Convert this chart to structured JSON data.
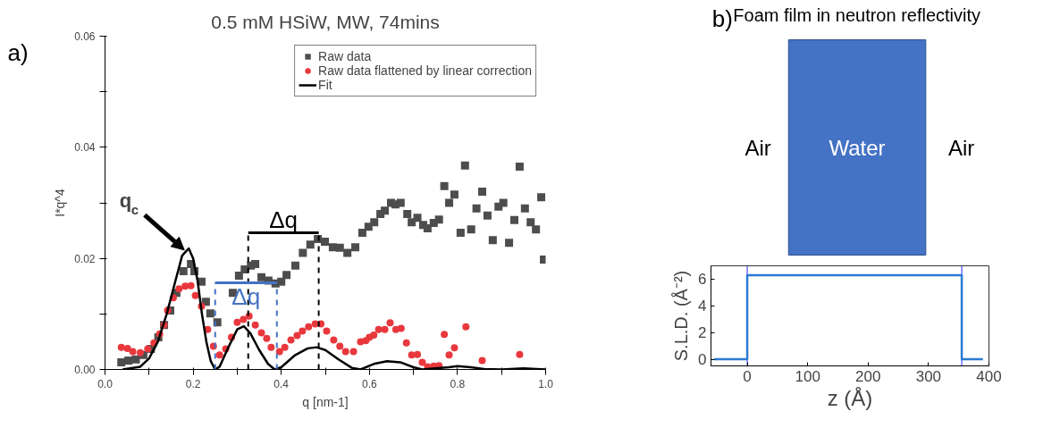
{
  "chart_data": [
    {
      "type": "scatter",
      "title": "0.5 mM HSiW, MW, 74mins",
      "xlabel": "q [nm-1]",
      "ylabel": "I*q^4",
      "xlim": [
        0,
        1
      ],
      "ylim": [
        0,
        0.06
      ],
      "xticks": [
        "0.0",
        {
          "value": 0.1,
          "label": null
        },
        {
          "value": 0.2,
          "label": "0.2"
        },
        {
          "value": 0.3,
          "label": null
        },
        {
          "value": 0.4,
          "label": "0.4"
        },
        {
          "value": 0.5,
          "label": null
        },
        {
          "value": 0.6,
          "label": "0.6"
        },
        {
          "value": 0.7,
          "label": null
        },
        {
          "value": 0.8,
          "label": "0.8"
        },
        {
          "value": 0.9,
          "label": null
        },
        {
          "value": 1.0,
          "label": "1.0"
        }
      ],
      "yticks": [
        {
          "value": 0,
          "label": "0.00"
        },
        {
          "value": 0.01,
          "label": null
        },
        {
          "value": 0.02,
          "label": "0.02"
        },
        {
          "value": 0.03,
          "label": null
        },
        {
          "value": 0.04,
          "label": "0.04"
        },
        {
          "value": 0.05,
          "label": null
        },
        {
          "value": 0.06,
          "label": "0.06"
        }
      ],
      "grid": false,
      "legend": "top right",
      "series": [
        {
          "name": "Raw data",
          "type": "scatter",
          "marker": "square",
          "color": "#4d4d4d",
          "x": [
            0.037,
            0.053,
            0.07,
            0.087,
            0.104,
            0.121,
            0.134,
            0.148,
            0.162,
            0.178,
            0.195,
            0.203,
            0.219,
            0.229,
            0.239,
            0.255,
            0.29,
            0.304,
            0.317,
            0.331,
            0.341,
            0.355,
            0.371,
            0.387,
            0.4,
            0.412,
            0.432,
            0.449,
            0.466,
            0.483,
            0.499,
            0.517,
            0.533,
            0.55,
            0.568,
            0.584,
            0.598,
            0.611,
            0.625,
            0.635,
            0.649,
            0.659,
            0.671,
            0.686,
            0.696,
            0.709,
            0.722,
            0.732,
            0.746,
            0.758,
            0.77,
            0.781,
            0.793,
            0.807,
            0.817,
            0.831,
            0.843,
            0.856,
            0.868,
            0.88,
            0.893,
            0.904,
            0.917,
            0.929,
            0.941,
            0.953,
            0.966,
            0.978,
            0.99,
            0.996
          ],
          "values": [
            0.0013,
            0.0016,
            0.0018,
            0.0026,
            0.0037,
            0.0058,
            0.008,
            0.0106,
            0.0138,
            0.0177,
            0.019,
            0.0177,
            0.0158,
            0.0122,
            0.0101,
            0.0085,
            0.0138,
            0.0169,
            0.018,
            0.0187,
            0.019,
            0.0166,
            0.016,
            0.0155,
            0.0158,
            0.017,
            0.0187,
            0.021,
            0.0225,
            0.0235,
            0.023,
            0.022,
            0.0219,
            0.021,
            0.022,
            0.0246,
            0.0257,
            0.0265,
            0.028,
            0.0286,
            0.03,
            0.0297,
            0.03,
            0.028,
            0.0265,
            0.0273,
            0.026,
            0.0254,
            0.0264,
            0.027,
            0.033,
            0.03,
            0.0315,
            0.0246,
            0.0367,
            0.0252,
            0.029,
            0.032,
            0.0277,
            0.0233,
            0.0293,
            0.03,
            0.0228,
            0.0269,
            0.0365,
            0.029,
            0.0265,
            0.0252,
            0.031,
            0.0198
          ]
        },
        {
          "name": "Raw data flattened by linear correction",
          "type": "scatter",
          "marker": "circle",
          "color": "#e8383d",
          "x": [
            0.037,
            0.051,
            0.063,
            0.08,
            0.097,
            0.111,
            0.124,
            0.134,
            0.142,
            0.155,
            0.168,
            0.182,
            0.195,
            0.205,
            0.219,
            0.233,
            0.246,
            0.26,
            0.274,
            0.287,
            0.3,
            0.314,
            0.327,
            0.341,
            0.355,
            0.367,
            0.377,
            0.396,
            0.408,
            0.422,
            0.436,
            0.448,
            0.462,
            0.477,
            0.49,
            0.503,
            0.519,
            0.533,
            0.546,
            0.564,
            0.58,
            0.592,
            0.6,
            0.61,
            0.621,
            0.635,
            0.647,
            0.66,
            0.672,
            0.684,
            0.696,
            0.709,
            0.72,
            0.732,
            0.746,
            0.758,
            0.77,
            0.781,
            0.793,
            0.819,
            0.856,
            0.941
          ],
          "values": [
            0.004,
            0.0038,
            0.0032,
            0.003,
            0.0037,
            0.0048,
            0.0064,
            0.008,
            0.0106,
            0.0129,
            0.0145,
            0.015,
            0.0151,
            0.0133,
            0.0114,
            0.0072,
            0.0042,
            0.0026,
            0.0037,
            0.0058,
            0.0085,
            0.009,
            0.0096,
            0.008,
            0.0066,
            0.0056,
            0.004,
            0.0032,
            0.004,
            0.0053,
            0.0061,
            0.0069,
            0.0077,
            0.0082,
            0.0082,
            0.0069,
            0.0053,
            0.0042,
            0.0032,
            0.0032,
            0.005,
            0.0052,
            0.0058,
            0.0062,
            0.0072,
            0.0072,
            0.0084,
            0.0072,
            0.0074,
            0.0048,
            0.0026,
            0.0027,
            0.0013,
            0.0005,
            0.0006,
            0.0007,
            0.0063,
            0.0026,
            0.0039,
            0.0077,
            0.0016,
            0.0027
          ]
        },
        {
          "name": "Fit",
          "type": "line",
          "line_style": "solid",
          "color": "#000000",
          "x": [
            0.04,
            0.08,
            0.1,
            0.12,
            0.14,
            0.16,
            0.175,
            0.19,
            0.2,
            0.21,
            0.22,
            0.23,
            0.24,
            0.25,
            0.26,
            0.28,
            0.3,
            0.315,
            0.33,
            0.35,
            0.37,
            0.385,
            0.4,
            0.43,
            0.46,
            0.48,
            0.5,
            0.53,
            0.56,
            0.58,
            0.61,
            0.64,
            0.67,
            0.7,
            0.72,
            0.78,
            0.8,
            0.83,
            0.86,
            0.9,
            0.95,
            1.0
          ],
          "values": [
            0.0,
            0.0005,
            0.002,
            0.005,
            0.01,
            0.016,
            0.0205,
            0.0218,
            0.02,
            0.016,
            0.01,
            0.005,
            0.0015,
            0.0,
            0.0005,
            0.004,
            0.0072,
            0.0078,
            0.0065,
            0.0035,
            0.001,
            0.0,
            0.0004,
            0.0025,
            0.0038,
            0.004,
            0.0035,
            0.0018,
            0.0003,
            0.0,
            0.001,
            0.0015,
            0.0013,
            0.0004,
            0.0,
            0.0004,
            0.0006,
            0.0004,
            0.0001,
            0.0,
            0.0002,
            0.0
          ]
        }
      ],
      "ref_lines": [
        {
          "axis": "x",
          "value": 0.325,
          "color": "#000000",
          "line_style": "dashed"
        },
        {
          "axis": "x",
          "value": 0.485,
          "color": "#000000",
          "line_style": "dashed"
        },
        {
          "axis": "x",
          "value": 0.25,
          "color": "#4472c4",
          "line_style": "dashed"
        },
        {
          "axis": "x",
          "value": 0.39,
          "color": "#4472c4",
          "line_style": "dashed"
        }
      ],
      "annotations": [
        "a)",
        {
          "text": "q$_{c}$",
          "x": 0.18,
          "y": 0.0215
        },
        "Δq",
        "Δq"
      ]
    },
    {
      "type": "line",
      "title": "Foam film in neutron reflectivity",
      "xlabel": "z (Å)",
      "ylabel": "S.L.D. (Å⁻²)",
      "xlim": [
        -60,
        400
      ],
      "ylim": [
        -0.5,
        7
      ],
      "xticks": [
        0,
        100,
        200,
        300,
        400
      ],
      "yticks": [
        0,
        2,
        4,
        6
      ],
      "grid": false,
      "legend": false,
      "series": [
        {
          "color": "#2a7ad2",
          "x": [
            -55,
            0,
            0,
            355,
            355,
            390
          ],
          "values": [
            0,
            0,
            6.3,
            6.3,
            0,
            0
          ]
        }
      ],
      "ref_lines": [
        {
          "axis": "x",
          "value": 0,
          "color": "#4b4bff"
        },
        {
          "axis": "x",
          "value": 355,
          "color": "#4b4bff"
        }
      ],
      "annotations": [
        "b)",
        "Air",
        "Water",
        "Air"
      ]
    }
  ]
}
